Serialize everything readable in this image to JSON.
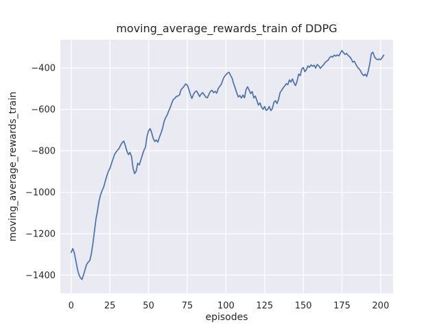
{
  "chart_data": {
    "type": "line",
    "title": "moving_average_rewards_train of DDPG",
    "xlabel": "episodes",
    "ylabel": "moving_average_rewards_train",
    "legend": "none",
    "grid": true,
    "xlim": [
      -7,
      208
    ],
    "ylim": [
      -1488,
      -264
    ],
    "x_ticks": [
      0,
      25,
      50,
      75,
      100,
      125,
      150,
      175,
      200
    ],
    "x_tick_labels": [
      "0",
      "25",
      "50",
      "75",
      "100",
      "125",
      "150",
      "175",
      "200"
    ],
    "y_ticks": [
      -400,
      -600,
      -800,
      -1000,
      -1200,
      -1400
    ],
    "y_tick_labels": [
      "−400",
      "−600",
      "−800",
      "−1000",
      "−1200",
      "−1400"
    ],
    "colors": {
      "line": "#4c72b0",
      "plot_bg": "#eaeaf2",
      "grid": "#ffffff",
      "text": "#262626",
      "figure_bg": "#ffffff"
    },
    "series": [
      {
        "name": "moving_average_rewards_train",
        "x_start": 0,
        "x_step": 1,
        "values": [
          -1290,
          -1272,
          -1292,
          -1330,
          -1370,
          -1398,
          -1413,
          -1421,
          -1398,
          -1372,
          -1348,
          -1337,
          -1330,
          -1298,
          -1250,
          -1190,
          -1130,
          -1090,
          -1042,
          -1012,
          -992,
          -975,
          -947,
          -922,
          -900,
          -885,
          -862,
          -840,
          -818,
          -806,
          -797,
          -788,
          -772,
          -760,
          -753,
          -775,
          -802,
          -818,
          -808,
          -828,
          -885,
          -910,
          -898,
          -860,
          -868,
          -845,
          -820,
          -798,
          -783,
          -730,
          -704,
          -693,
          -712,
          -740,
          -755,
          -748,
          -758,
          -735,
          -715,
          -693,
          -660,
          -640,
          -628,
          -608,
          -592,
          -570,
          -552,
          -547,
          -537,
          -536,
          -530,
          -505,
          -497,
          -488,
          -477,
          -483,
          -502,
          -528,
          -547,
          -528,
          -516,
          -511,
          -524,
          -538,
          -526,
          -519,
          -530,
          -541,
          -544,
          -527,
          -513,
          -508,
          -519,
          -513,
          -522,
          -500,
          -489,
          -479,
          -458,
          -442,
          -433,
          -425,
          -421,
          -436,
          -450,
          -476,
          -497,
          -521,
          -540,
          -533,
          -545,
          -531,
          -544,
          -505,
          -491,
          -507,
          -524,
          -514,
          -545,
          -536,
          -557,
          -579,
          -569,
          -589,
          -600,
          -586,
          -605,
          -600,
          -586,
          -606,
          -596,
          -566,
          -558,
          -572,
          -552,
          -519,
          -508,
          -496,
          -487,
          -476,
          -481,
          -458,
          -468,
          -453,
          -473,
          -485,
          -463,
          -430,
          -437,
          -405,
          -398,
          -418,
          -408,
          -390,
          -397,
          -385,
          -392,
          -387,
          -401,
          -383,
          -390,
          -402,
          -393,
          -386,
          -375,
          -368,
          -363,
          -350,
          -344,
          -348,
          -338,
          -343,
          -337,
          -342,
          -328,
          -316,
          -327,
          -335,
          -330,
          -340,
          -346,
          -356,
          -372,
          -368,
          -383,
          -396,
          -404,
          -414,
          -429,
          -437,
          -430,
          -441,
          -414,
          -378,
          -330,
          -324,
          -346,
          -356,
          -360,
          -357,
          -360,
          -350,
          -338
        ]
      }
    ]
  }
}
